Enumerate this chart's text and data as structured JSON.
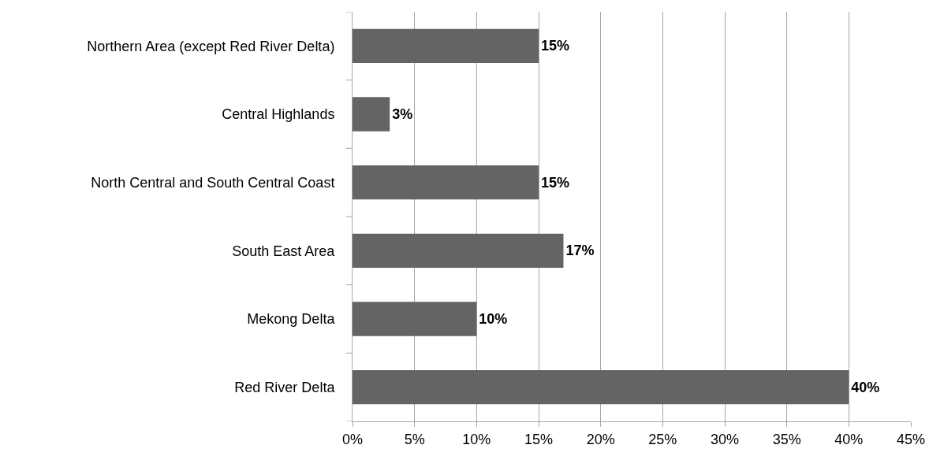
{
  "chart_data": {
    "type": "bar",
    "orientation": "horizontal",
    "categories": [
      "Northern Area (except Red River Delta)",
      "Central Highlands",
      "North Central and South Central Coast",
      "South East Area",
      "Mekong Delta",
      "Red River Delta"
    ],
    "values": [
      15,
      3,
      15,
      17,
      10,
      40
    ],
    "value_labels": [
      "15%",
      "3%",
      "15%",
      "17%",
      "10%",
      "40%"
    ],
    "color": "#646464",
    "xlim": [
      0,
      45
    ],
    "xticks": [
      {
        "value": 0,
        "label": "0%"
      },
      {
        "value": 5,
        "label": "5%"
      },
      {
        "value": 10,
        "label": "10%"
      },
      {
        "value": 15,
        "label": "15%"
      },
      {
        "value": 20,
        "label": "20%"
      },
      {
        "value": 25,
        "label": "25%"
      },
      {
        "value": 30,
        "label": "30%"
      },
      {
        "value": 35,
        "label": "35%"
      },
      {
        "value": 40,
        "label": "40%"
      },
      {
        "value": 45,
        "label": "45%"
      }
    ],
    "grid": "x"
  }
}
